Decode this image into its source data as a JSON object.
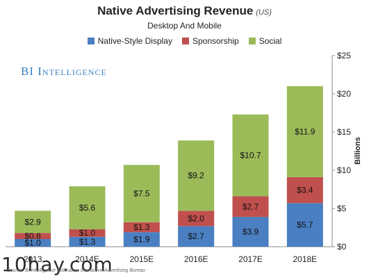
{
  "header": {
    "title": "Native Advertising Revenue",
    "title_unit": "(US)",
    "subtitle": "Desktop And Mobile"
  },
  "brand": "BI Intelligence",
  "watermark": "10hay.com",
  "source": "Source: BI Intelligence estimates, Interactive Advertising Bureau",
  "colors": {
    "native": "#4a7fc1",
    "sponsorship": "#c0504d",
    "social": "#9bbb59"
  },
  "chart_data": {
    "type": "bar",
    "stacked": true,
    "title": "Native Advertising Revenue",
    "subtitle": "Desktop And Mobile",
    "categories": [
      "2013",
      "2014E",
      "2015E",
      "2016E",
      "2017E",
      "2018E"
    ],
    "series": [
      {
        "name": "Native-Style Display",
        "values": [
          1.0,
          1.3,
          1.9,
          2.7,
          3.9,
          5.7
        ],
        "labels": [
          "$1.0",
          "$1.3",
          "$1.9",
          "$2.7",
          "$3.9",
          "$5.7"
        ]
      },
      {
        "name": "Sponsorship",
        "values": [
          0.8,
          1.0,
          1.3,
          2.0,
          2.7,
          3.4
        ],
        "labels": [
          "$0.8",
          "$1.0",
          "$1.3",
          "$2.0",
          "$2.7",
          "$3.4"
        ]
      },
      {
        "name": "Social",
        "values": [
          2.9,
          5.6,
          7.5,
          9.2,
          10.7,
          11.9
        ],
        "labels": [
          "$2.9",
          "$5.6",
          "$7.5",
          "$9.2",
          "$10.7",
          "$11.9"
        ]
      }
    ],
    "ylabel": "Billions",
    "ylim": [
      0,
      25
    ],
    "yticks": [
      0,
      5,
      10,
      15,
      20,
      25
    ],
    "ytick_labels": [
      "$0",
      "$5",
      "$10",
      "$15",
      "$20",
      "$25"
    ],
    "y_axis_side": "right",
    "legend_position": "top-center",
    "grid": false
  }
}
